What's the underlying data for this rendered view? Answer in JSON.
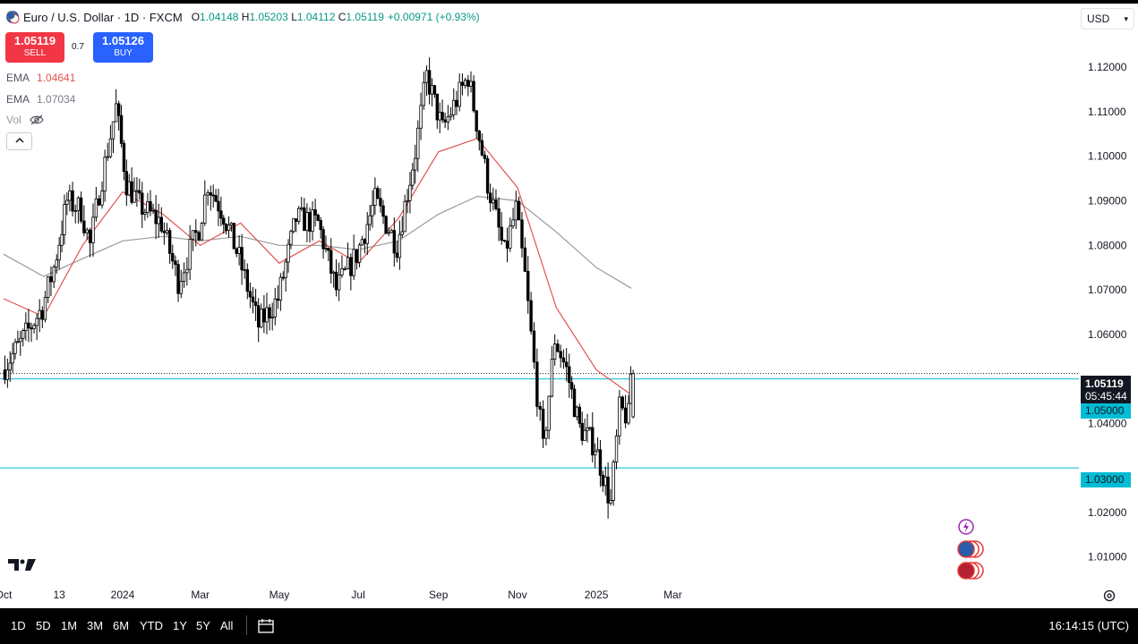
{
  "header": {
    "symbol_title": "Euro / U.S. Dollar · 1D · FXCM",
    "open_label": "O",
    "open": "1.04148",
    "high_label": "H",
    "high": "1.05203",
    "low_label": "L",
    "low": "1.04112",
    "close_label": "C",
    "close": "1.05119",
    "change": "+0.00971 (+0.93%)"
  },
  "trade": {
    "sell_price": "1.05119",
    "sell_label": "SELL",
    "spread": "0.7",
    "buy_price": "1.05126",
    "buy_label": "BUY"
  },
  "indicators": {
    "ema1_label": "EMA",
    "ema1_value": "1.04641",
    "ema2_label": "EMA",
    "ema2_value": "1.07034",
    "vol_label": "Vol"
  },
  "currency_button": "USD",
  "price_tags": {
    "last_price": "1.05119",
    "countdown": "05:45:44",
    "level_upper": "1.05000",
    "level_lower": "1.03000"
  },
  "bottom_bar": {
    "ranges": [
      "1D",
      "5D",
      "1M",
      "3M",
      "6M",
      "YTD",
      "1Y",
      "5Y",
      "All"
    ],
    "clock": "16:14:15 (UTC)"
  },
  "colors": {
    "up_candle": "#ffffff",
    "down_candle": "#000000",
    "ema_fast": "#e0544f",
    "ema_slow": "#9a9a9a",
    "horizontal_level": "#00bcd4",
    "sell": "#f23645",
    "buy": "#2962ff"
  },
  "icons": {
    "symbol": "euro-usd-flag-icon",
    "hide_volume": "eye-crossed-icon",
    "collapse": "chevron-up-icon",
    "lightning_event": "lightning-icon",
    "eu_event": "eu-flag-icon",
    "us_event": "us-flag-icon",
    "calendar": "calendar-icon",
    "settings": "gear-icon",
    "logo": "tradingview-logo-icon"
  },
  "chart_data": {
    "type": "candlestick",
    "y_axis_ticks": [
      "1.12000",
      "1.11000",
      "1.10000",
      "1.09000",
      "1.08000",
      "1.07000",
      "1.06000",
      "1.04000",
      "1.02000",
      "1.01000"
    ],
    "x_axis_ticks": [
      "Oct",
      "13",
      "2024",
      "Mar",
      "May",
      "Jul",
      "Sep",
      "Nov",
      "2025",
      "Mar"
    ],
    "ylim": [
      1.0035,
      1.1335
    ],
    "horizontal_levels": [
      1.05,
      1.03
    ],
    "last_close": 1.05119,
    "price_path_weekly": [
      {
        "t": "2023-10-01",
        "c": 1.052
      },
      {
        "t": "2023-10-15",
        "c": 1.058
      },
      {
        "t": "2023-11-01",
        "c": 1.066
      },
      {
        "t": "2023-11-10",
        "c": 1.075
      },
      {
        "t": "2023-11-20",
        "c": 1.09
      },
      {
        "t": "2023-12-01",
        "c": 1.088
      },
      {
        "t": "2023-12-08",
        "c": 1.08
      },
      {
        "t": "2023-12-15",
        "c": 1.092
      },
      {
        "t": "2023-12-28",
        "c": 1.111
      },
      {
        "t": "2024-01-05",
        "c": 1.094
      },
      {
        "t": "2024-01-15",
        "c": 1.089
      },
      {
        "t": "2024-02-01",
        "c": 1.085
      },
      {
        "t": "2024-02-14",
        "c": 1.072
      },
      {
        "t": "2024-03-01",
        "c": 1.084
      },
      {
        "t": "2024-03-08",
        "c": 1.094
      },
      {
        "t": "2024-03-20",
        "c": 1.087
      },
      {
        "t": "2024-04-01",
        "c": 1.077
      },
      {
        "t": "2024-04-16",
        "c": 1.062
      },
      {
        "t": "2024-05-01",
        "c": 1.068
      },
      {
        "t": "2024-05-15",
        "c": 1.086
      },
      {
        "t": "2024-06-01",
        "c": 1.085
      },
      {
        "t": "2024-06-15",
        "c": 1.07
      },
      {
        "t": "2024-07-01",
        "c": 1.078
      },
      {
        "t": "2024-07-15",
        "c": 1.09
      },
      {
        "t": "2024-08-01",
        "c": 1.08
      },
      {
        "t": "2024-08-15",
        "c": 1.101
      },
      {
        "t": "2024-08-24",
        "c": 1.118
      },
      {
        "t": "2024-09-05",
        "c": 1.106
      },
      {
        "t": "2024-09-25",
        "c": 1.118
      },
      {
        "t": "2024-10-10",
        "c": 1.094
      },
      {
        "t": "2024-10-23",
        "c": 1.078
      },
      {
        "t": "2024-11-01",
        "c": 1.088
      },
      {
        "t": "2024-11-08",
        "c": 1.073
      },
      {
        "t": "2024-11-15",
        "c": 1.053
      },
      {
        "t": "2024-11-22",
        "c": 1.034
      },
      {
        "t": "2024-12-01",
        "c": 1.059
      },
      {
        "t": "2024-12-10",
        "c": 1.052
      },
      {
        "t": "2024-12-20",
        "c": 1.039
      },
      {
        "t": "2025-01-01",
        "c": 1.035
      },
      {
        "t": "2025-01-13",
        "c": 1.022
      },
      {
        "t": "2025-01-20",
        "c": 1.043
      },
      {
        "t": "2025-01-27",
        "c": 1.04148
      },
      {
        "t": "2025-01-28",
        "c": 1.05119
      }
    ],
    "ema_fast_path": [
      {
        "t": "2023-10-01",
        "v": 1.068
      },
      {
        "t": "2023-11-01",
        "v": 1.064
      },
      {
        "t": "2023-12-01",
        "v": 1.08
      },
      {
        "t": "2024-01-01",
        "v": 1.092
      },
      {
        "t": "2024-02-01",
        "v": 1.087
      },
      {
        "t": "2024-03-01",
        "v": 1.08
      },
      {
        "t": "2024-04-01",
        "v": 1.085
      },
      {
        "t": "2024-05-01",
        "v": 1.076
      },
      {
        "t": "2024-06-01",
        "v": 1.081
      },
      {
        "t": "2024-07-01",
        "v": 1.076
      },
      {
        "t": "2024-08-01",
        "v": 1.086
      },
      {
        "t": "2024-09-01",
        "v": 1.101
      },
      {
        "t": "2024-10-01",
        "v": 1.104
      },
      {
        "t": "2024-11-01",
        "v": 1.093
      },
      {
        "t": "2024-12-01",
        "v": 1.066
      },
      {
        "t": "2025-01-01",
        "v": 1.052
      },
      {
        "t": "2025-01-28",
        "v": 1.04641
      }
    ],
    "ema_slow_path": [
      {
        "t": "2023-10-01",
        "v": 1.078
      },
      {
        "t": "2023-11-01",
        "v": 1.073
      },
      {
        "t": "2023-12-01",
        "v": 1.077
      },
      {
        "t": "2024-01-01",
        "v": 1.081
      },
      {
        "t": "2024-02-01",
        "v": 1.082
      },
      {
        "t": "2024-03-01",
        "v": 1.081
      },
      {
        "t": "2024-04-01",
        "v": 1.082
      },
      {
        "t": "2024-05-01",
        "v": 1.08
      },
      {
        "t": "2024-06-01",
        "v": 1.08
      },
      {
        "t": "2024-07-01",
        "v": 1.079
      },
      {
        "t": "2024-08-01",
        "v": 1.081
      },
      {
        "t": "2024-09-01",
        "v": 1.087
      },
      {
        "t": "2024-10-01",
        "v": 1.091
      },
      {
        "t": "2024-11-01",
        "v": 1.09
      },
      {
        "t": "2024-12-01",
        "v": 1.083
      },
      {
        "t": "2025-01-01",
        "v": 1.075
      },
      {
        "t": "2025-01-28",
        "v": 1.07034
      }
    ]
  }
}
